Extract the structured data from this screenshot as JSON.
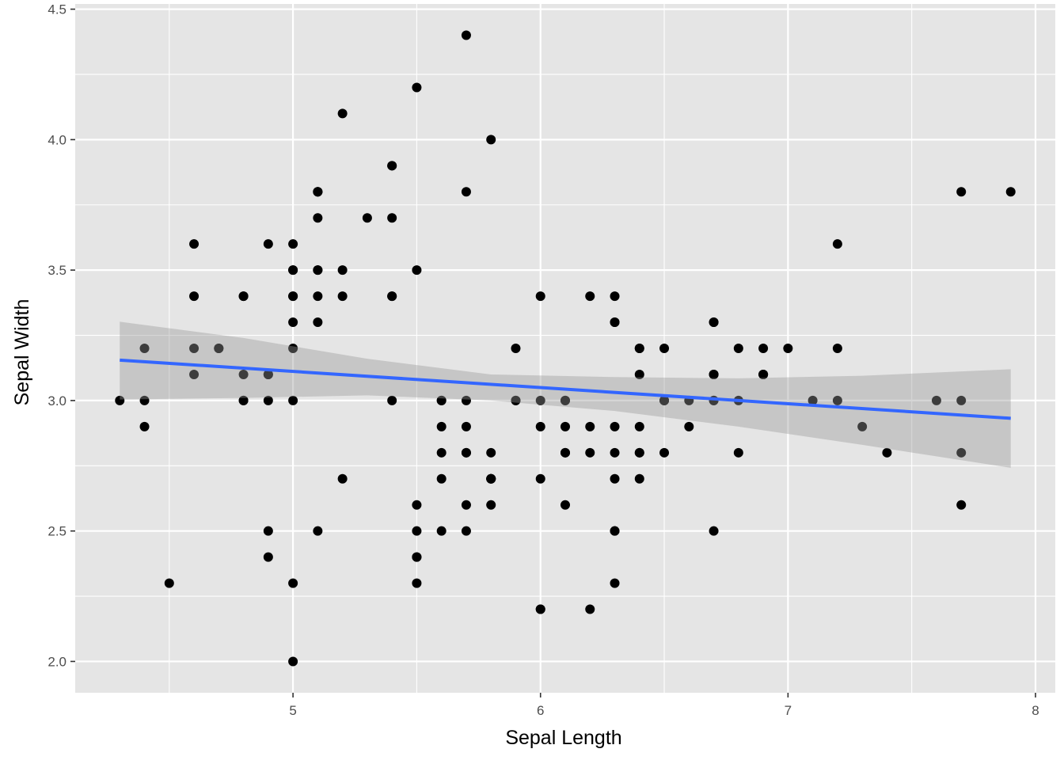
{
  "chart_data": {
    "type": "scatter",
    "title": "",
    "xlabel": "Sepal Length",
    "ylabel": "Sepal Width",
    "xlim": [
      4.12,
      8.08
    ],
    "ylim": [
      1.88,
      4.52
    ],
    "x_ticks": [
      "5",
      "6",
      "7",
      "8"
    ],
    "y_ticks": [
      "2.0",
      "2.5",
      "3.0",
      "3.5",
      "4.0",
      "4.5"
    ],
    "grid": true,
    "legend": "none",
    "colors": {
      "panel": "#e5e5e5",
      "grid": "#ffffff",
      "points": "#000000",
      "fit_line": "#3366ff",
      "confidence_band": "#999999"
    },
    "points": [
      [
        5.1,
        3.5
      ],
      [
        4.9,
        3.0
      ],
      [
        4.7,
        3.2
      ],
      [
        4.6,
        3.1
      ],
      [
        5.0,
        3.6
      ],
      [
        5.4,
        3.9
      ],
      [
        4.6,
        3.4
      ],
      [
        5.0,
        3.4
      ],
      [
        4.4,
        2.9
      ],
      [
        4.9,
        3.1
      ],
      [
        5.4,
        3.7
      ],
      [
        4.8,
        3.4
      ],
      [
        4.8,
        3.0
      ],
      [
        4.3,
        3.0
      ],
      [
        5.8,
        4.0
      ],
      [
        5.7,
        4.4
      ],
      [
        5.4,
        3.9
      ],
      [
        5.1,
        3.5
      ],
      [
        5.7,
        3.8
      ],
      [
        5.1,
        3.8
      ],
      [
        5.4,
        3.4
      ],
      [
        5.1,
        3.7
      ],
      [
        4.6,
        3.6
      ],
      [
        5.1,
        3.3
      ],
      [
        4.8,
        3.4
      ],
      [
        5.0,
        3.0
      ],
      [
        5.0,
        3.4
      ],
      [
        5.2,
        3.5
      ],
      [
        5.2,
        3.4
      ],
      [
        4.7,
        3.2
      ],
      [
        4.8,
        3.1
      ],
      [
        5.4,
        3.4
      ],
      [
        5.2,
        4.1
      ],
      [
        5.5,
        4.2
      ],
      [
        4.9,
        3.1
      ],
      [
        5.0,
        3.2
      ],
      [
        5.5,
        3.5
      ],
      [
        4.9,
        3.6
      ],
      [
        4.4,
        3.0
      ],
      [
        5.1,
        3.4
      ],
      [
        5.0,
        3.5
      ],
      [
        4.5,
        2.3
      ],
      [
        4.4,
        3.2
      ],
      [
        5.0,
        3.5
      ],
      [
        5.1,
        3.8
      ],
      [
        4.8,
        3.0
      ],
      [
        5.1,
        3.8
      ],
      [
        4.6,
        3.2
      ],
      [
        5.3,
        3.7
      ],
      [
        5.0,
        3.3
      ],
      [
        7.0,
        3.2
      ],
      [
        6.4,
        3.2
      ],
      [
        6.9,
        3.1
      ],
      [
        5.5,
        2.3
      ],
      [
        6.5,
        2.8
      ],
      [
        5.7,
        2.8
      ],
      [
        6.3,
        3.3
      ],
      [
        4.9,
        2.4
      ],
      [
        6.6,
        2.9
      ],
      [
        5.2,
        2.7
      ],
      [
        5.0,
        2.0
      ],
      [
        5.9,
        3.0
      ],
      [
        6.0,
        2.2
      ],
      [
        6.1,
        2.9
      ],
      [
        5.6,
        2.9
      ],
      [
        6.7,
        3.1
      ],
      [
        5.6,
        3.0
      ],
      [
        5.8,
        2.7
      ],
      [
        6.2,
        2.2
      ],
      [
        5.6,
        2.5
      ],
      [
        5.9,
        3.2
      ],
      [
        6.1,
        2.8
      ],
      [
        6.3,
        2.5
      ],
      [
        6.1,
        2.8
      ],
      [
        6.4,
        2.9
      ],
      [
        6.6,
        3.0
      ],
      [
        6.8,
        2.8
      ],
      [
        6.7,
        3.0
      ],
      [
        6.0,
        2.9
      ],
      [
        5.7,
        2.6
      ],
      [
        5.5,
        2.4
      ],
      [
        5.5,
        2.4
      ],
      [
        5.8,
        2.7
      ],
      [
        6.0,
        2.7
      ],
      [
        5.4,
        3.0
      ],
      [
        6.0,
        3.4
      ],
      [
        6.7,
        3.1
      ],
      [
        6.3,
        2.3
      ],
      [
        5.6,
        3.0
      ],
      [
        5.5,
        2.5
      ],
      [
        5.5,
        2.6
      ],
      [
        6.1,
        3.0
      ],
      [
        5.8,
        2.6
      ],
      [
        5.0,
        2.3
      ],
      [
        5.6,
        2.7
      ],
      [
        5.7,
        3.0
      ],
      [
        5.7,
        2.9
      ],
      [
        6.2,
        2.9
      ],
      [
        5.1,
        2.5
      ],
      [
        5.7,
        2.8
      ],
      [
        6.3,
        3.3
      ],
      [
        5.8,
        2.7
      ],
      [
        7.1,
        3.0
      ],
      [
        6.3,
        2.9
      ],
      [
        6.5,
        3.0
      ],
      [
        7.6,
        3.0
      ],
      [
        4.9,
        2.5
      ],
      [
        7.3,
        2.9
      ],
      [
        6.7,
        2.5
      ],
      [
        7.2,
        3.6
      ],
      [
        6.5,
        3.2
      ],
      [
        6.4,
        2.7
      ],
      [
        6.8,
        3.0
      ],
      [
        5.7,
        2.5
      ],
      [
        5.8,
        2.8
      ],
      [
        6.4,
        3.2
      ],
      [
        6.5,
        3.0
      ],
      [
        7.7,
        3.8
      ],
      [
        7.7,
        2.6
      ],
      [
        6.0,
        2.2
      ],
      [
        6.9,
        3.2
      ],
      [
        5.6,
        2.8
      ],
      [
        7.7,
        2.8
      ],
      [
        6.3,
        2.7
      ],
      [
        6.7,
        3.3
      ],
      [
        7.2,
        3.2
      ],
      [
        6.2,
        2.8
      ],
      [
        6.1,
        3.0
      ],
      [
        6.4,
        2.8
      ],
      [
        7.2,
        3.0
      ],
      [
        7.4,
        2.8
      ],
      [
        7.9,
        3.8
      ],
      [
        6.4,
        2.8
      ],
      [
        6.3,
        2.8
      ],
      [
        6.1,
        2.6
      ],
      [
        7.7,
        3.0
      ],
      [
        6.3,
        3.4
      ],
      [
        6.4,
        3.1
      ],
      [
        6.0,
        3.0
      ],
      [
        6.9,
        3.1
      ],
      [
        6.7,
        3.1
      ],
      [
        6.9,
        3.1
      ],
      [
        5.8,
        2.7
      ],
      [
        6.8,
        3.2
      ],
      [
        6.7,
        3.3
      ],
      [
        6.7,
        3.0
      ],
      [
        6.3,
        2.5
      ],
      [
        6.5,
        3.0
      ],
      [
        6.2,
        3.4
      ],
      [
        5.9,
        3.0
      ]
    ],
    "fit_line": {
      "x": [
        4.3,
        7.9
      ],
      "y": [
        3.155,
        2.932
      ]
    },
    "confidence_band": {
      "x": [
        4.3,
        4.8,
        5.3,
        5.8,
        6.3,
        6.8,
        7.3,
        7.9
      ],
      "lower": [
        3.004,
        3.01,
        3.02,
        3.0,
        2.96,
        2.9,
        2.83,
        2.742
      ],
      "upper": [
        3.302,
        3.24,
        3.16,
        3.1,
        3.09,
        3.085,
        3.095,
        3.12
      ]
    }
  }
}
